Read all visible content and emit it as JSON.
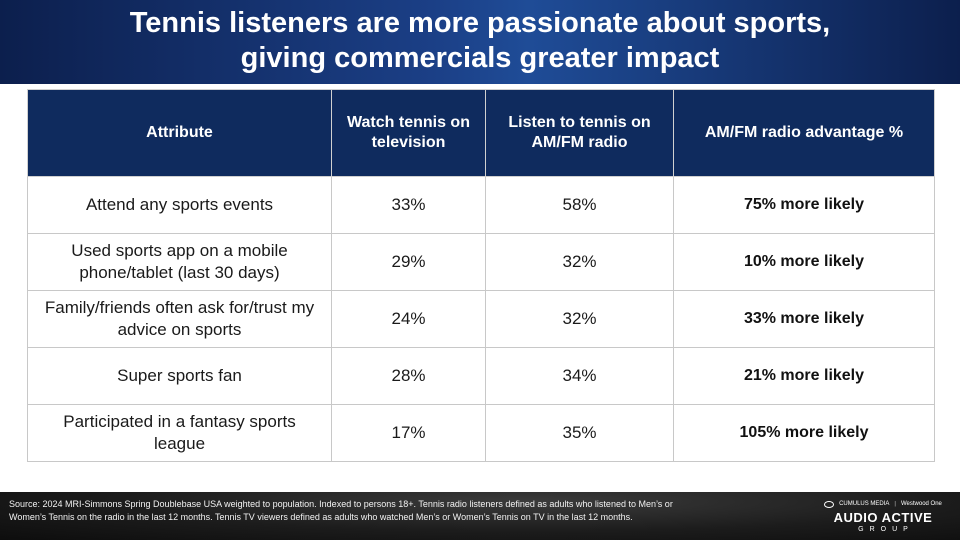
{
  "header": {
    "title_line1": "Tennis listeners are more passionate about sports,",
    "title_line2": "giving commercials greater impact"
  },
  "table": {
    "columns": [
      "Attribute",
      "Watch tennis on television",
      "Listen to tennis on AM/FM radio",
      "AM/FM radio advantage %"
    ],
    "rows": [
      {
        "attribute": "Attend any sports events",
        "tv": "33%",
        "radio": "58%",
        "advantage": "75% more likely"
      },
      {
        "attribute": "Used sports app on a mobile phone/tablet (last 30 days)",
        "tv": "29%",
        "radio": "32%",
        "advantage": "10% more likely"
      },
      {
        "attribute": "Family/friends often ask for/trust my advice on sports",
        "tv": "24%",
        "radio": "32%",
        "advantage": "33% more likely"
      },
      {
        "attribute": "Super sports fan",
        "tv": "28%",
        "radio": "34%",
        "advantage": "21% more likely"
      },
      {
        "attribute": "Participated in a fantasy sports league",
        "tv": "17%",
        "radio": "35%",
        "advantage": "105% more likely"
      }
    ]
  },
  "footer": {
    "source": "Source: 2024 MRI-Simmons Spring Doublebase USA weighted to population. Indexed to persons 18+. Tennis radio listeners defined as adults who listened to Men’s or Women’s Tennis on the radio in the last 12 months. Tennis TV viewers defined as adults who watched Men’s or Women’s Tennis on TV in the last 12 months.",
    "brand_left": "CUMULUS MEDIA",
    "brand_right": "Westwood One",
    "brand_main": "AUDIO ACTIVE",
    "brand_sub": "GROUP"
  },
  "colors": {
    "header_bg": "#1b3f86",
    "table_header_bg": "#0f2b5e",
    "footer_bg": "#1c1c1c"
  }
}
